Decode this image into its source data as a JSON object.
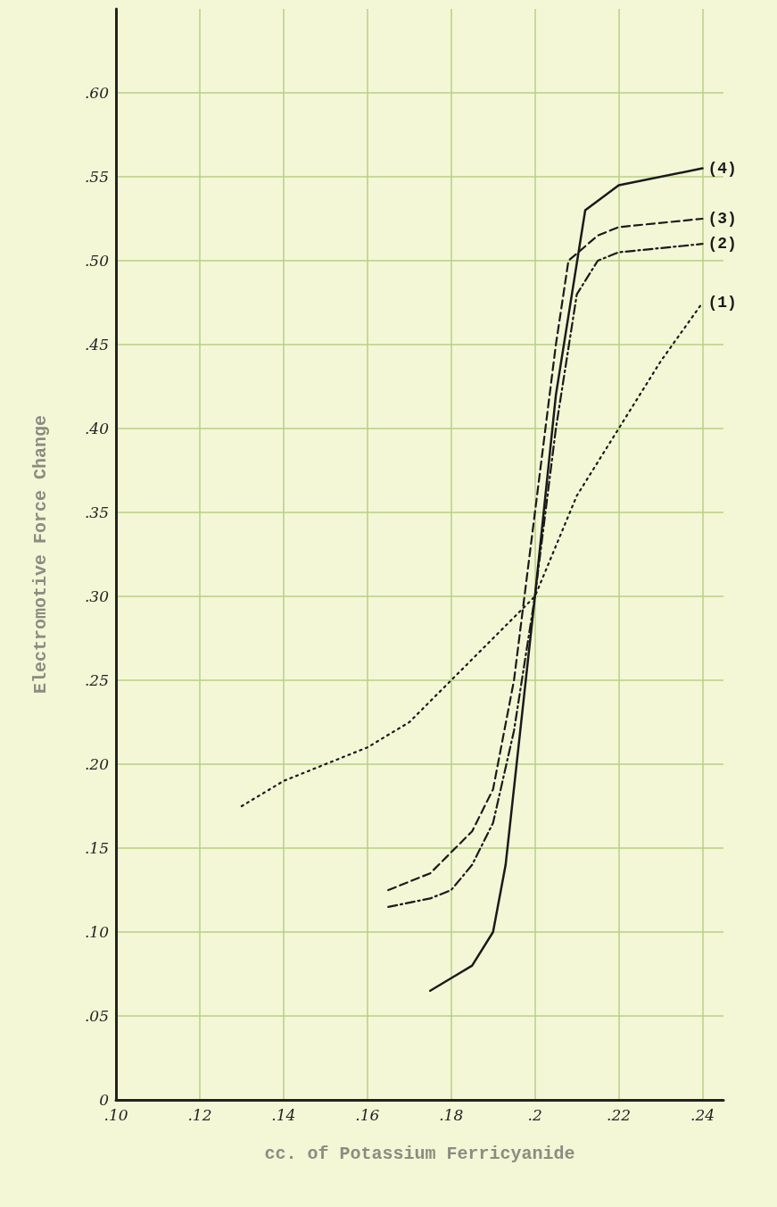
{
  "chart_data": {
    "type": "line",
    "xlabel": "cc. of Potassium Ferricyanide",
    "ylabel": "Electromotive Force Change",
    "xlim": [
      0.1,
      0.245
    ],
    "xticks": [
      {
        "value": 0.1,
        "label": ".10"
      },
      {
        "value": 0.12,
        "label": ".12"
      },
      {
        "value": 0.14,
        "label": ".14"
      },
      {
        "value": 0.16,
        "label": ".16"
      },
      {
        "value": 0.18,
        "label": ".18"
      },
      {
        "value": 0.2,
        "label": ".2"
      },
      {
        "value": 0.22,
        "label": ".22"
      },
      {
        "value": 0.24,
        "label": ".24"
      }
    ],
    "ylim": [
      0,
      0.65
    ],
    "yticks": [
      0,
      {
        "value": 0.05,
        "label": ".05"
      },
      {
        "value": 0.1,
        "label": ".10"
      },
      {
        "value": 0.15,
        "label": ".15"
      },
      {
        "value": 0.2,
        "label": ".20"
      },
      {
        "value": 0.25,
        "label": ".25"
      },
      {
        "value": 0.3,
        "label": ".30"
      },
      {
        "value": 0.35,
        "label": ".35"
      },
      {
        "value": 0.4,
        "label": ".40"
      },
      {
        "value": 0.45,
        "label": ".45"
      },
      {
        "value": 0.5,
        "label": ".50"
      },
      {
        "value": 0.55,
        "label": ".55"
      },
      {
        "value": 0.6,
        "label": ".60"
      }
    ],
    "grid": true,
    "marker": "none",
    "series": [
      {
        "name": "(1)",
        "color": "#1a1a1a",
        "line_style": "dotted",
        "x": [
          0.13,
          0.14,
          0.15,
          0.16,
          0.17,
          0.18,
          0.19,
          0.2,
          0.205,
          0.21,
          0.22,
          0.23,
          0.24
        ],
        "values": [
          0.175,
          0.19,
          0.2,
          0.21,
          0.225,
          0.25,
          0.275,
          0.3,
          0.33,
          0.36,
          0.4,
          0.44,
          0.475
        ]
      },
      {
        "name": "(2)",
        "color": "#1a1a1a",
        "line_style": "dashdot",
        "x": [
          0.165,
          0.175,
          0.18,
          0.185,
          0.19,
          0.195,
          0.2,
          0.205,
          0.21,
          0.215,
          0.22,
          0.24
        ],
        "values": [
          0.115,
          0.12,
          0.125,
          0.14,
          0.165,
          0.22,
          0.3,
          0.4,
          0.48,
          0.5,
          0.505,
          0.51
        ]
      },
      {
        "name": "(3)",
        "color": "#1a1a1a",
        "line_style": "dashed",
        "x": [
          0.165,
          0.175,
          0.185,
          0.19,
          0.195,
          0.2,
          0.205,
          0.208,
          0.215,
          0.22,
          0.24
        ],
        "values": [
          0.125,
          0.135,
          0.16,
          0.185,
          0.25,
          0.35,
          0.45,
          0.5,
          0.515,
          0.52,
          0.525
        ]
      },
      {
        "name": "(4)",
        "color": "#1a1a1a",
        "line_style": "solid",
        "x": [
          0.175,
          0.185,
          0.19,
          0.193,
          0.2,
          0.205,
          0.212,
          0.22,
          0.24
        ],
        "values": [
          0.065,
          0.08,
          0.1,
          0.14,
          0.3,
          0.42,
          0.53,
          0.545,
          0.555
        ]
      }
    ]
  }
}
